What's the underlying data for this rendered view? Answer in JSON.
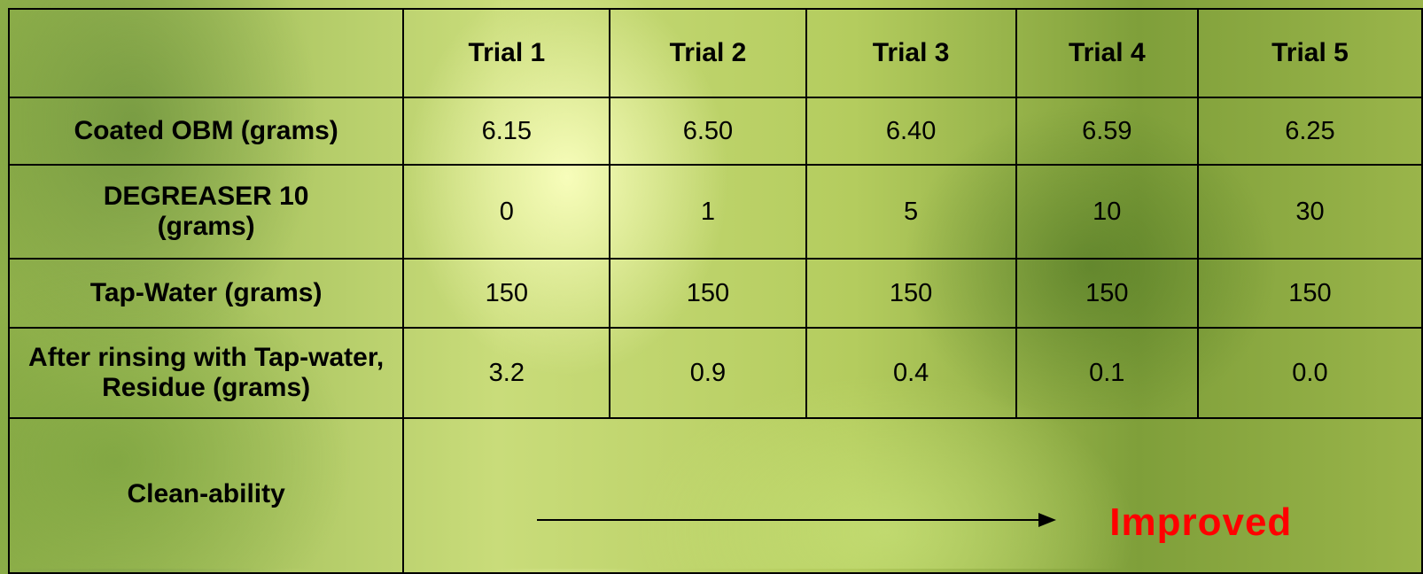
{
  "table": {
    "header": [
      "Trial 1",
      "Trial 2",
      "Trial 3",
      "Trial 4",
      "Trial 5"
    ],
    "rows": [
      {
        "label": "Coated OBM (grams)",
        "values": [
          "6.15",
          "6.50",
          "6.40",
          "6.59",
          "6.25"
        ]
      },
      {
        "label": "DEGREASER 10 (grams)",
        "values": [
          "0",
          "1",
          "5",
          "10",
          "30"
        ]
      },
      {
        "label": "Tap-Water (grams)",
        "values": [
          "150",
          "150",
          "150",
          "150",
          "150"
        ]
      },
      {
        "label": "After rinsing with Tap-water, Residue (grams)",
        "values": [
          "3.2",
          "0.9",
          "0.4",
          "0.1",
          "0.0"
        ]
      }
    ],
    "final_row": {
      "label": "Clean-ability",
      "note": "Improved"
    }
  }
}
